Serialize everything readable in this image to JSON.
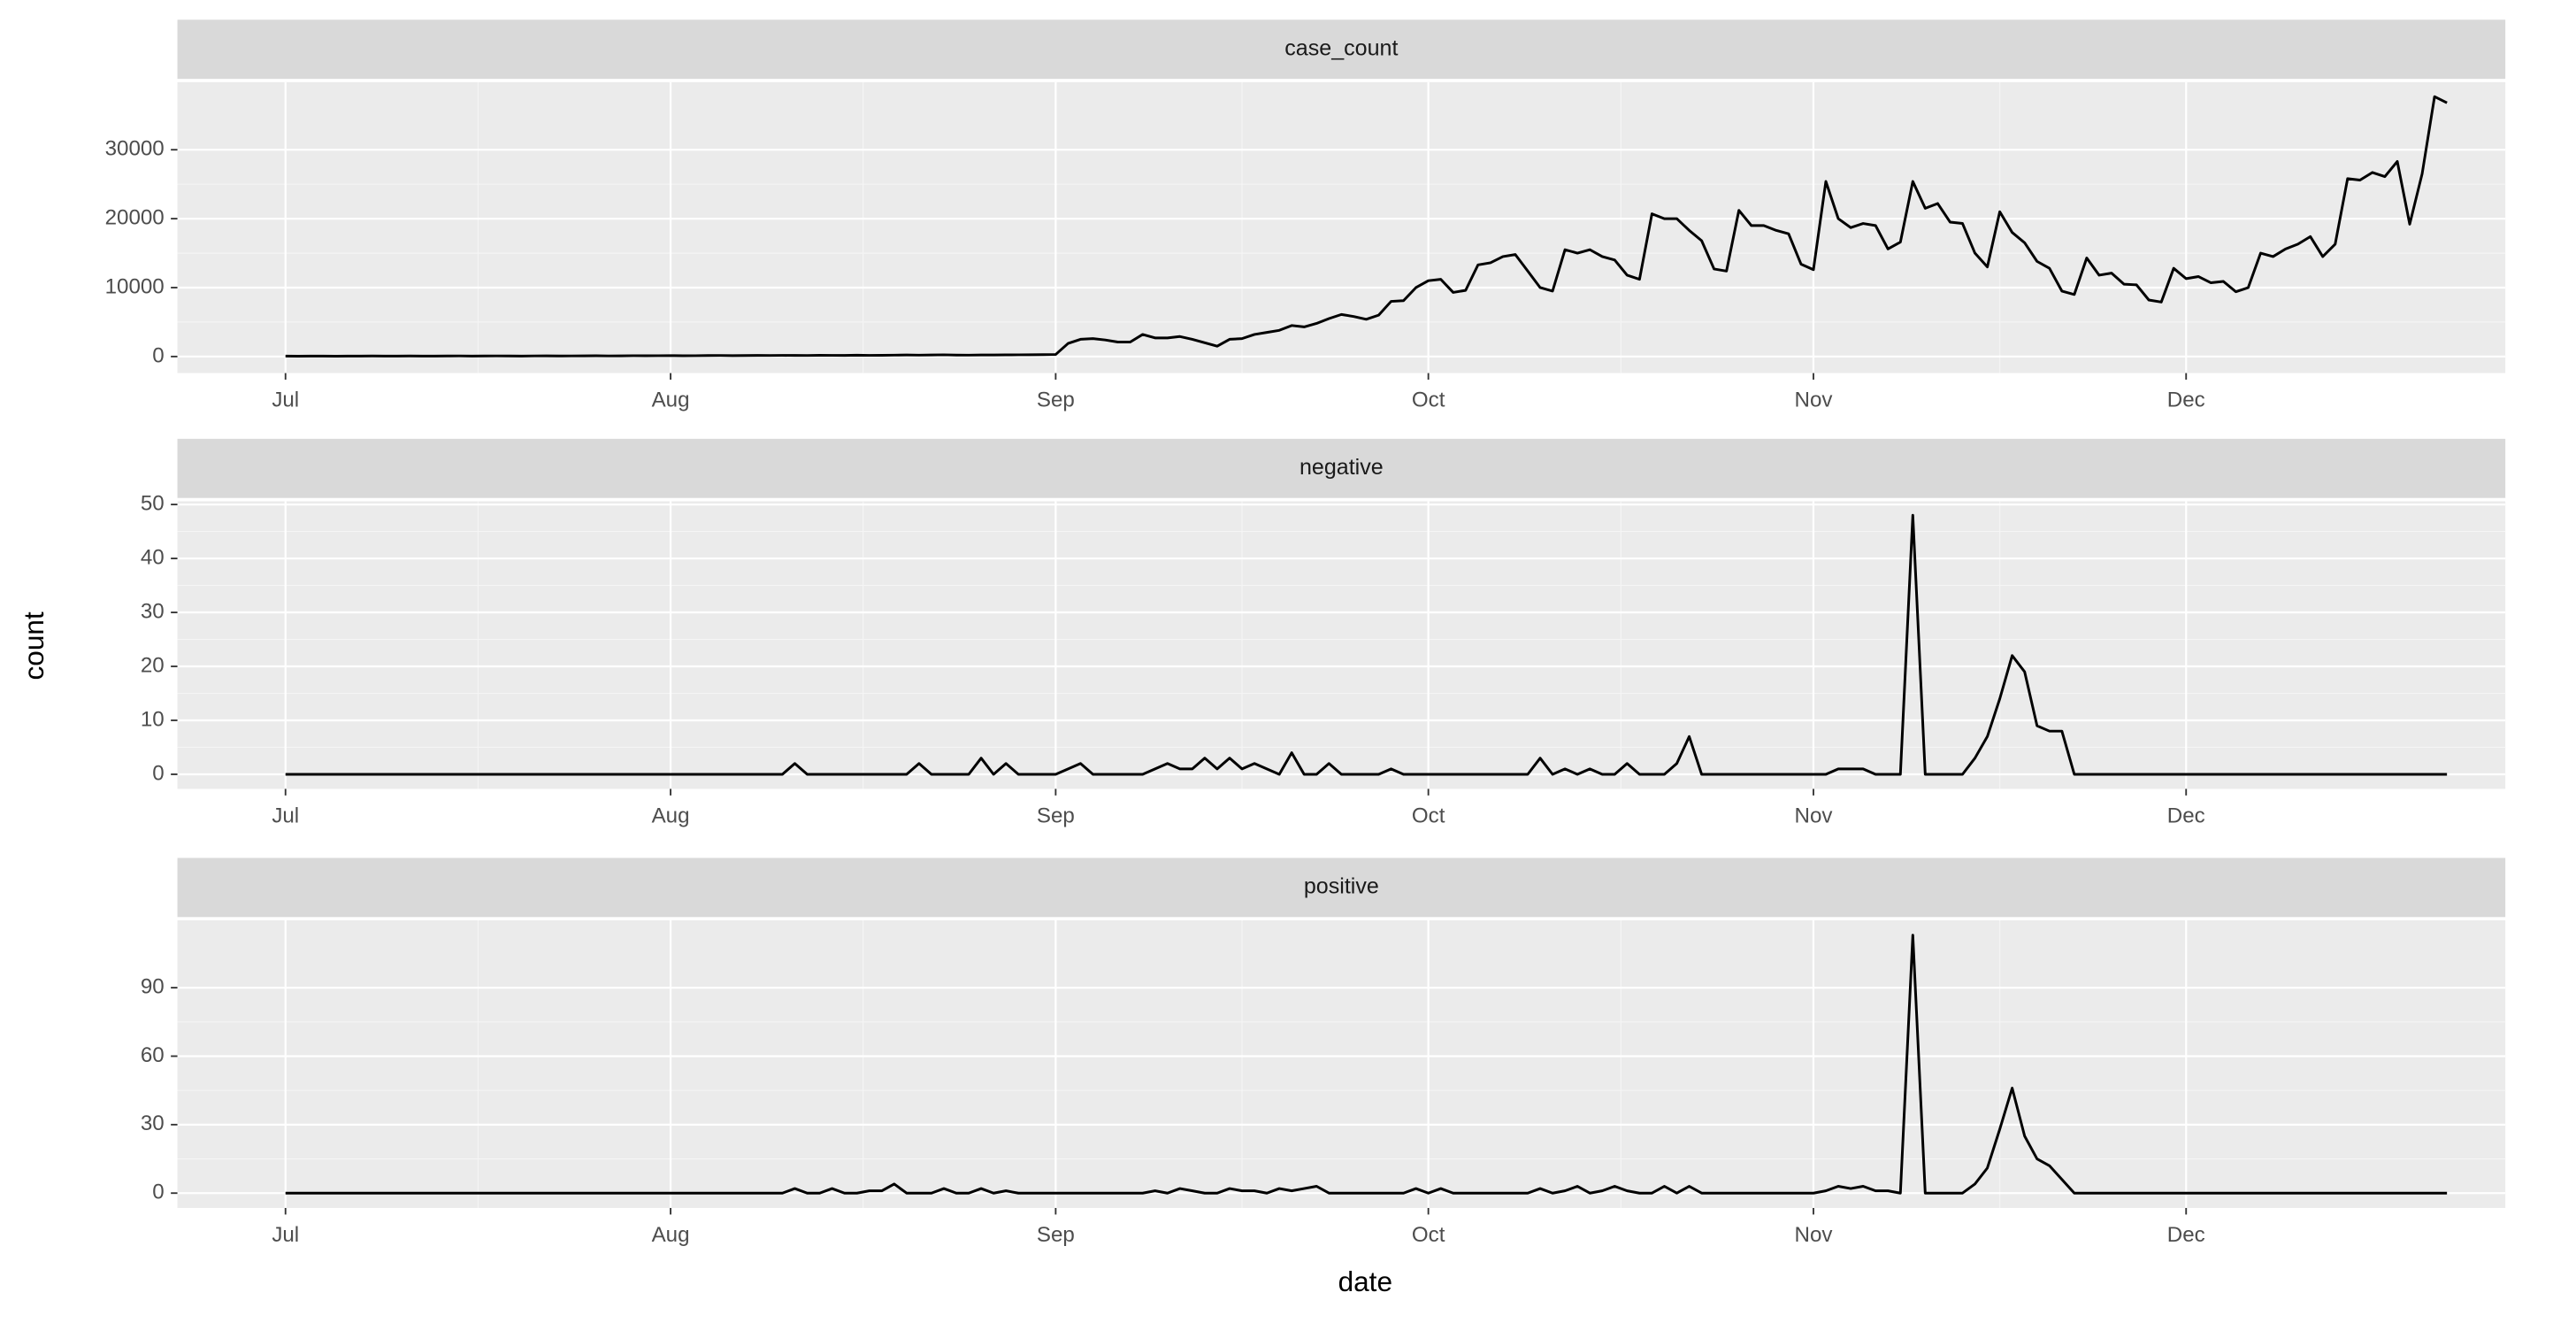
{
  "x_label": "date",
  "y_label": "count",
  "chart_data": [
    {
      "type": "line",
      "title": "case_count",
      "color": "#000000",
      "x": [
        0,
        1,
        2,
        3,
        4,
        5,
        6,
        7,
        8,
        9,
        10,
        11,
        12,
        13,
        14,
        15,
        16,
        17,
        18,
        19,
        20,
        21,
        22,
        23,
        24,
        25,
        26,
        27,
        28,
        29,
        30,
        31,
        32,
        33,
        34,
        35,
        36,
        37,
        38,
        39,
        40,
        41,
        42,
        43,
        44,
        45,
        46,
        47,
        48,
        49,
        50,
        51,
        52,
        53,
        54,
        55,
        56,
        57,
        58,
        59,
        60,
        61,
        62,
        63,
        64,
        65,
        66,
        67,
        68,
        69,
        70,
        71,
        72,
        73,
        74,
        75,
        76,
        77,
        78,
        79,
        80,
        81,
        82,
        83,
        84,
        85,
        86,
        87,
        88,
        89,
        90,
        91,
        92,
        93,
        94,
        95,
        96,
        97,
        98,
        99,
        100,
        101,
        102,
        103,
        104,
        105,
        106,
        107,
        108,
        109,
        110,
        111,
        112,
        113,
        114,
        115,
        116,
        117,
        118,
        119,
        120,
        121,
        122,
        123,
        124,
        125,
        126,
        127,
        128,
        129,
        130,
        131,
        132,
        133,
        134,
        135,
        136,
        137,
        138,
        139,
        140,
        141,
        142,
        143,
        144,
        145,
        146,
        147,
        148,
        149,
        150,
        151,
        152,
        153,
        154,
        155,
        156,
        157,
        158,
        159,
        160,
        161,
        162,
        163,
        164,
        165,
        166,
        167,
        168,
        169,
        170,
        171,
        172,
        173,
        174
      ],
      "values": [
        60,
        50,
        70,
        60,
        50,
        60,
        70,
        80,
        60,
        70,
        80,
        70,
        60,
        80,
        90,
        70,
        80,
        90,
        80,
        70,
        90,
        100,
        80,
        90,
        100,
        110,
        90,
        100,
        120,
        110,
        120,
        130,
        110,
        120,
        140,
        150,
        130,
        140,
        160,
        150,
        170,
        160,
        150,
        180,
        170,
        160,
        190,
        170,
        180,
        200,
        220,
        200,
        230,
        250,
        210,
        200,
        220,
        230,
        240,
        250,
        260,
        270,
        300,
        1900,
        2500,
        2600,
        2400,
        2100,
        2100,
        3200,
        2700,
        2700,
        2900,
        2500,
        2000,
        1500,
        2500,
        2600,
        3200,
        3500,
        3800,
        4500,
        4300,
        4800,
        5500,
        6100,
        5800,
        5400,
        6000,
        8000,
        8100,
        10000,
        11000,
        11200,
        9300,
        9600,
        13300,
        13600,
        14500,
        14800,
        12400,
        10000,
        9500,
        15500,
        15000,
        15500,
        14500,
        14000,
        11800,
        11200,
        20700,
        20000,
        20000,
        18300,
        16800,
        12700,
        12400,
        21200,
        19000,
        19000,
        18300,
        17800,
        13400,
        12600,
        25400,
        20000,
        18700,
        19300,
        19000,
        15600,
        16600,
        25400,
        21500,
        22200,
        19500,
        19300,
        15000,
        13000,
        21000,
        18000,
        16500,
        13800,
        12800,
        9500,
        9000,
        14300,
        11800,
        12100,
        10500,
        10400,
        8200,
        7900,
        12800,
        11300,
        11600,
        10700,
        10900,
        9400,
        10000,
        15000,
        14500,
        15600,
        16300,
        17400,
        14500,
        16300,
        25800,
        25600,
        26700,
        26100,
        28300,
        19200,
        26500,
        37700,
        36800
      ],
      "xlim": [
        -8.7,
        178.7
      ],
      "xticks": [
        {
          "value": 0,
          "label": "Jul"
        },
        {
          "value": 31,
          "label": "Aug"
        },
        {
          "value": 62,
          "label": "Sep"
        },
        {
          "value": 92,
          "label": "Oct"
        },
        {
          "value": 123,
          "label": "Nov"
        },
        {
          "value": 153,
          "label": "Dec"
        }
      ],
      "ylim": [
        -2400,
        39800
      ],
      "yticks": [
        0,
        10000,
        20000,
        30000
      ],
      "grid": true
    },
    {
      "type": "line",
      "title": "negative",
      "color": "#000000",
      "x": [
        0,
        1,
        2,
        3,
        4,
        5,
        6,
        7,
        8,
        9,
        10,
        11,
        12,
        13,
        14,
        15,
        16,
        17,
        18,
        19,
        20,
        21,
        22,
        23,
        24,
        25,
        26,
        27,
        28,
        29,
        30,
        31,
        32,
        33,
        34,
        35,
        36,
        37,
        38,
        39,
        40,
        41,
        42,
        43,
        44,
        45,
        46,
        47,
        48,
        49,
        50,
        51,
        52,
        53,
        54,
        55,
        56,
        57,
        58,
        59,
        60,
        61,
        62,
        63,
        64,
        65,
        66,
        67,
        68,
        69,
        70,
        71,
        72,
        73,
        74,
        75,
        76,
        77,
        78,
        79,
        80,
        81,
        82,
        83,
        84,
        85,
        86,
        87,
        88,
        89,
        90,
        91,
        92,
        93,
        94,
        95,
        96,
        97,
        98,
        99,
        100,
        101,
        102,
        103,
        104,
        105,
        106,
        107,
        108,
        109,
        110,
        111,
        112,
        113,
        114,
        115,
        116,
        117,
        118,
        119,
        120,
        121,
        122,
        123,
        124,
        125,
        126,
        127,
        128,
        129,
        130,
        131,
        132,
        133,
        134,
        135,
        136,
        137,
        138,
        139,
        140,
        141,
        142,
        143,
        144,
        145,
        146,
        147,
        148,
        149,
        150,
        151,
        152,
        153,
        154,
        155,
        156,
        157,
        158,
        159,
        160,
        161,
        162,
        163,
        164,
        165,
        166,
        167,
        168,
        169,
        170,
        171,
        172,
        173,
        174
      ],
      "values": [
        0,
        0,
        0,
        0,
        0,
        0,
        0,
        0,
        0,
        0,
        0,
        0,
        0,
        0,
        0,
        0,
        0,
        0,
        0,
        0,
        0,
        0,
        0,
        0,
        0,
        0,
        0,
        0,
        0,
        0,
        0,
        0,
        0,
        0,
        0,
        0,
        0,
        0,
        0,
        0,
        0,
        2,
        0,
        0,
        0,
        0,
        0,
        0,
        0,
        0,
        0,
        2,
        0,
        0,
        0,
        0,
        3,
        0,
        2,
        0,
        0,
        0,
        0,
        1,
        2,
        0,
        0,
        0,
        0,
        0,
        1,
        2,
        1,
        1,
        3,
        1,
        3,
        1,
        2,
        1,
        0,
        4,
        0,
        0,
        2,
        0,
        0,
        0,
        0,
        1,
        0,
        0,
        0,
        0,
        0,
        0,
        0,
        0,
        0,
        0,
        0,
        3,
        0,
        1,
        0,
        1,
        0,
        0,
        2,
        0,
        0,
        0,
        2,
        7,
        0,
        0,
        0,
        0,
        0,
        0,
        0,
        0,
        0,
        0,
        0,
        1,
        1,
        1,
        0,
        0,
        0,
        48,
        0,
        0,
        0,
        0,
        3,
        7,
        14,
        22,
        19,
        9,
        8,
        8,
        0,
        0,
        0,
        0,
        0,
        0,
        0,
        0,
        0,
        0,
        0,
        0,
        0,
        0,
        0,
        0,
        0,
        0,
        0,
        0,
        0,
        0,
        0,
        0,
        0,
        0,
        0,
        0,
        0,
        0,
        0
      ],
      "xlim": [
        -8.7,
        178.7
      ],
      "xticks": [
        {
          "value": 0,
          "label": "Jul"
        },
        {
          "value": 31,
          "label": "Aug"
        },
        {
          "value": 62,
          "label": "Sep"
        },
        {
          "value": 92,
          "label": "Oct"
        },
        {
          "value": 123,
          "label": "Nov"
        },
        {
          "value": 153,
          "label": "Dec"
        }
      ],
      "ylim": [
        -2.7,
        50.6
      ],
      "yticks": [
        0,
        10,
        20,
        30,
        40,
        50
      ],
      "grid": true
    },
    {
      "type": "line",
      "title": "positive",
      "color": "#000000",
      "x": [
        0,
        1,
        2,
        3,
        4,
        5,
        6,
        7,
        8,
        9,
        10,
        11,
        12,
        13,
        14,
        15,
        16,
        17,
        18,
        19,
        20,
        21,
        22,
        23,
        24,
        25,
        26,
        27,
        28,
        29,
        30,
        31,
        32,
        33,
        34,
        35,
        36,
        37,
        38,
        39,
        40,
        41,
        42,
        43,
        44,
        45,
        46,
        47,
        48,
        49,
        50,
        51,
        52,
        53,
        54,
        55,
        56,
        57,
        58,
        59,
        60,
        61,
        62,
        63,
        64,
        65,
        66,
        67,
        68,
        69,
        70,
        71,
        72,
        73,
        74,
        75,
        76,
        77,
        78,
        79,
        80,
        81,
        82,
        83,
        84,
        85,
        86,
        87,
        88,
        89,
        90,
        91,
        92,
        93,
        94,
        95,
        96,
        97,
        98,
        99,
        100,
        101,
        102,
        103,
        104,
        105,
        106,
        107,
        108,
        109,
        110,
        111,
        112,
        113,
        114,
        115,
        116,
        117,
        118,
        119,
        120,
        121,
        122,
        123,
        124,
        125,
        126,
        127,
        128,
        129,
        130,
        131,
        132,
        133,
        134,
        135,
        136,
        137,
        138,
        139,
        140,
        141,
        142,
        143,
        144,
        145,
        146,
        147,
        148,
        149,
        150,
        151,
        152,
        153,
        154,
        155,
        156,
        157,
        158,
        159,
        160,
        161,
        162,
        163,
        164,
        165,
        166,
        167,
        168,
        169,
        170,
        171,
        172,
        173,
        174
      ],
      "values": [
        0,
        0,
        0,
        0,
        0,
        0,
        0,
        0,
        0,
        0,
        0,
        0,
        0,
        0,
        0,
        0,
        0,
        0,
        0,
        0,
        0,
        0,
        0,
        0,
        0,
        0,
        0,
        0,
        0,
        0,
        0,
        0,
        0,
        0,
        0,
        0,
        0,
        0,
        0,
        0,
        0,
        2,
        0,
        0,
        2,
        0,
        0,
        1,
        1,
        4,
        0,
        0,
        0,
        2,
        0,
        0,
        2,
        0,
        1,
        0,
        0,
        0,
        0,
        0,
        0,
        0,
        0,
        0,
        0,
        0,
        1,
        0,
        2,
        1,
        0,
        0,
        2,
        1,
        1,
        0,
        2,
        1,
        2,
        3,
        0,
        0,
        0,
        0,
        0,
        0,
        0,
        2,
        0,
        2,
        0,
        0,
        0,
        0,
        0,
        0,
        0,
        2,
        0,
        1,
        3,
        0,
        1,
        3,
        1,
        0,
        0,
        3,
        0,
        3,
        0,
        0,
        0,
        0,
        0,
        0,
        0,
        0,
        0,
        0,
        1,
        3,
        2,
        3,
        1,
        1,
        0,
        113,
        0,
        0,
        0,
        0,
        4,
        11,
        28,
        46,
        25,
        15,
        12,
        6,
        0,
        0,
        0,
        0,
        0,
        0,
        0,
        0,
        0,
        0,
        0,
        0,
        0,
        0,
        0,
        0,
        0,
        0,
        0,
        0,
        0,
        0,
        0,
        0,
        0,
        0,
        0,
        0,
        0,
        0,
        0
      ],
      "xlim": [
        -8.7,
        178.7
      ],
      "xticks": [
        {
          "value": 0,
          "label": "Jul"
        },
        {
          "value": 31,
          "label": "Aug"
        },
        {
          "value": 62,
          "label": "Sep"
        },
        {
          "value": 92,
          "label": "Oct"
        },
        {
          "value": 123,
          "label": "Nov"
        },
        {
          "value": 153,
          "label": "Dec"
        }
      ],
      "ylim": [
        -6.5,
        119.5
      ],
      "yticks": [
        0,
        30,
        60,
        90
      ],
      "grid": true
    }
  ]
}
